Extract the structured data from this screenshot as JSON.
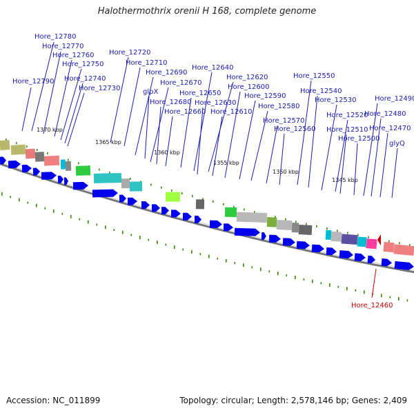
{
  "title": "Halothermothrix orenii H 168, complete genome",
  "footer": {
    "accession": "Accession: NC_011899",
    "info": "Topology: circular; Length: 2,578,146 bp; Genes: 2,409"
  },
  "colors": {
    "gene_arrow": "#0000ee",
    "label_blue": "#1a1ab0",
    "label_red": "#cc0000",
    "tick_green": "#2e8b00",
    "backbone": "#777777"
  },
  "kbp_ticks": [
    "1370 kbp",
    "1365 kbp",
    "1360 kbp",
    "1355 kbp",
    "1350 kbp",
    "1345 kbp"
  ],
  "gene_labels": [
    "Hore_12780",
    "Hore_12770",
    "Hore_12760",
    "Hore_12750",
    "Hore_12790",
    "Hore_12740",
    "Hore_12730",
    "Hore_12720",
    "Hore_12710",
    "Hore_12690",
    "glpX",
    "Hore_12670",
    "Hore_12680",
    "Hore_12660",
    "Hore_12650",
    "Hore_12640",
    "Hore_12620",
    "Hore_12630",
    "Hore_12610",
    "Hore_12600",
    "Hore_12590",
    "Hore_12580",
    "Hore_12570",
    "Hore_12560",
    "Hore_12550",
    "Hore_12540",
    "Hore_12530",
    "Hore_12520",
    "Hore_12510",
    "Hore_12500",
    "Hore_12490",
    "Hore_12480",
    "Hore_12470",
    "glyQ"
  ],
  "highlight_label": "Hore_12460"
}
